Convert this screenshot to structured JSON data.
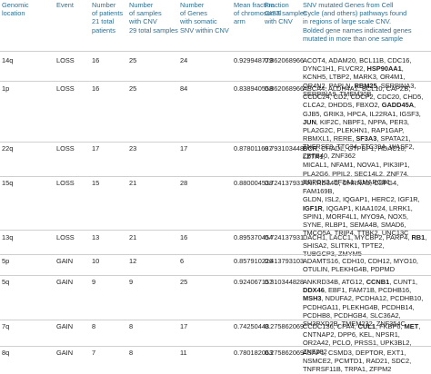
{
  "headers": {
    "location": "Genomic\nlocation",
    "event": "Event",
    "patients": "Number\nof patients\n21 total\npatients",
    "samples": "Number\nof samples\nwith CNV\n29 total samples",
    "genes": "Number\nof Genes\nwith somatic\nSNV within CNV",
    "fraction_arm": "Mean fraction\nof chromosomal\narm",
    "fraction_gist": "Fraction\nGIST samples\nwith CNV",
    "snv": "SNV mutated Genes from Cell\nCycle (and others) pathways found\nin regions of large scale CNV.\nBolded gene names indicated genes\nmutated in more than one sample"
  },
  "rows": [
    {
      "location": "14q",
      "event": "LOSS",
      "patients": "16",
      "samples": "25",
      "genes": "24",
      "fraction_arm": "0.929948779",
      "fraction_gist": "0.862068966",
      "genes_list": [
        {
          "t": "ACOT4, ADAM20, BCL11B, CDC16,",
          "b": []
        },
        {
          "t": "DYNC1H1, FLVCR2, HSP90AA1,",
          "b": [
            "HSP90AA1"
          ]
        },
        {
          "t": "KCNH5, LTBP2, MARK3, OR4M1,",
          "b": []
        },
        {
          "t": "OR4N2, PAPLN, RBM25, SERPINA3,",
          "b": [
            "RBM25"
          ]
        },
        {
          "t": "SERPINA9, TMEM30B",
          "b": []
        }
      ]
    },
    {
      "location": "1p",
      "event": "LOSS",
      "patients": "16",
      "samples": "25",
      "genes": "84",
      "fraction_arm": "0.838940558",
      "fraction_gist": "0.862068966",
      "genes_list": [
        {
          "t": "ABCA4, ALDH4A1, BCL10, CAPZB,",
          "b": []
        },
        {
          "t": "CCDC24, CD2, CDCP2, CDC20, CHD5,",
          "b": []
        },
        {
          "t": "CLCA2, DHDDS, FBXO2, GADD45A,",
          "b": [
            "GADD45A"
          ]
        },
        {
          "t": "GJB5, GRIK3, HPCA, IL22RA1, IGSF3,",
          "b": []
        },
        {
          "t": "JUN, KIF2C, NBPF1, NPPA, PER3,",
          "b": [
            "JUN"
          ]
        },
        {
          "t": "PLA2G2C, PLEKHN1, RAP1GAP,",
          "b": []
        },
        {
          "t": "RBMXL1, RERE, SF3A3, SPATA21,",
          "b": [
            "SF3A3"
          ]
        },
        {
          "t": "TNFRSF8, TTC34, TTC39A, WASF2,",
          "b": []
        },
        {
          "t": "ZBTB40, ZNF362",
          "b": []
        }
      ]
    },
    {
      "location": "22q",
      "event": "LOSS",
      "patients": "17",
      "samples": "23",
      "genes": "17",
      "fraction_arm": "0.878011687",
      "fraction_gist": "0.793103448",
      "genes_list": [
        {
          "t": "BCR, CHADL, GTPBP1, HDAC10, LZTR1,",
          "b": [
            "BCR"
          ]
        },
        {
          "t": "MICAL1, NFAM1, NOVA1, PIK3IP1,",
          "b": []
        },
        {
          "t": "PLA2G6, PPIL2, SEC14L2, ZNF74,",
          "b": []
        },
        {
          "t": "RBFOX2, SF3A1, SMARCB1",
          "b": []
        }
      ]
    },
    {
      "location": "15q",
      "event": "LOSS",
      "patients": "15",
      "samples": "21",
      "genes": "28",
      "fraction_arm": "0.880004538",
      "fraction_gist": "0.724137931",
      "genes_list": [
        {
          "t": "ANKRD34C, CHRNA5, CSPG4, FAM169B,",
          "b": []
        },
        {
          "t": "GLDN, ISL2, IQGAP1, HERC2, IGF1R,",
          "b": []
        },
        {
          "t": "IGF1R, IQGAP1, KIAA1024, LRRK1,",
          "b": [
            "IGF1R"
          ]
        },
        {
          "t": "SPIN1, MORF4L1, MYO9A, NOX5,",
          "b": []
        },
        {
          "t": "SYNE, RLBP1, SEMA4B, SMAD6,",
          "b": []
        },
        {
          "t": "TMCO5A, TRIP4, TTBK2, UNC13C",
          "b": []
        }
      ]
    },
    {
      "location": "13q",
      "event": "LOSS",
      "patients": "13",
      "samples": "21",
      "genes": "16",
      "fraction_arm": "0.895370454",
      "fraction_gist": "0.724137931",
      "genes_list": [
        {
          "t": "DACH1, LACC1, MYCBP2, PARP4, RB1,",
          "b": [
            "RB1"
          ]
        },
        {
          "t": "SHISA2, SLITRK1, TPTE2,",
          "b": []
        },
        {
          "t": "TUBGCP3, ZMYM5",
          "b": []
        }
      ]
    },
    {
      "location": "5p",
      "event": "GAIN",
      "patients": "10",
      "samples": "12",
      "genes": "6",
      "fraction_arm": "0.857910226",
      "fraction_gist": "0.413793103",
      "genes_list": [
        {
          "t": "ADAMTS16, CDH10, CDH12, MYO10,",
          "b": []
        },
        {
          "t": "OTULIN, PLEKHG4B, PDPMD",
          "b": []
        }
      ]
    },
    {
      "location": "5q",
      "event": "GAIN",
      "patients": "9",
      "samples": "9",
      "genes": "25",
      "fraction_arm": "0.924067157",
      "fraction_gist": "0.310344828",
      "genes_list": [
        {
          "t": "ANKRD34B, ATG12, CCNB1, CUNT1,",
          "b": [
            "CCNB1"
          ]
        },
        {
          "t": "DDX46, EBF1, FAM71B, PCDHB16,",
          "b": [
            "DDX46"
          ]
        },
        {
          "t": "MSH3, NDUFA2, PCDHA12, PCDHB10,",
          "b": [
            "MSH3"
          ]
        },
        {
          "t": "PCDHGA11, PLEKHG4B, PCDHB14,",
          "b": []
        },
        {
          "t": "PCDHB8, PCDHGB4, SLC36A2,",
          "b": []
        },
        {
          "t": "SH3PXD2B, TMEM232, ZNF354C",
          "b": []
        }
      ]
    },
    {
      "location": "7q",
      "event": "GAIN",
      "patients": "8",
      "samples": "8",
      "genes": "17",
      "fraction_arm": "0.74250448",
      "fraction_gist": "0.275862069",
      "genes_list": [
        {
          "t": "CCDC136, CPA4, CUL1, FKBP6, MET,",
          "b": [
            "CUL1",
            "MET"
          ]
        },
        {
          "t": "CNTNAP2, DPP6, KEL, NPSR1,",
          "b": []
        },
        {
          "t": "OR2A42, PCLO, PRSS1, UPK3BL2,",
          "b": []
        },
        {
          "t": "ZNF282",
          "b": []
        }
      ]
    },
    {
      "location": "8q",
      "event": "GAIN",
      "patients": "7",
      "samples": "8",
      "genes": "11",
      "fraction_arm": "0.780182063",
      "fraction_gist": "0.275862069",
      "genes_list": [
        {
          "t": "ASAP1, CSMD3, DEPTOR, EXT1,",
          "b": []
        },
        {
          "t": "NSMCE2, PCMTD1, RAD21, SDC2,",
          "b": []
        },
        {
          "t": "TNFRSF11B, TRPA1, ZFPM2",
          "b": []
        }
      ]
    }
  ]
}
